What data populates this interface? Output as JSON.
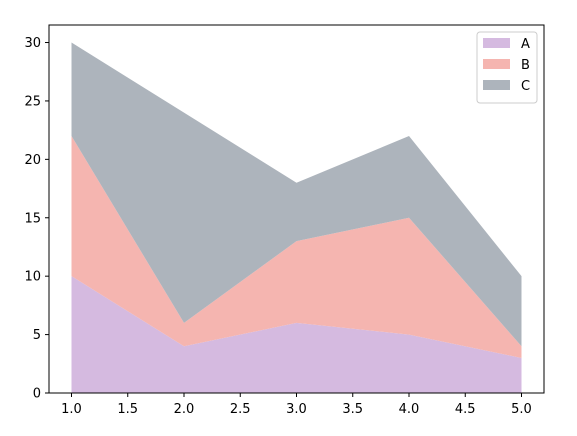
{
  "chart_data": {
    "type": "area",
    "stacked": true,
    "title": "",
    "xlabel": "",
    "ylabel": "",
    "x": [
      1,
      2,
      3,
      4,
      5
    ],
    "xlim": [
      0.8,
      5.2
    ],
    "ylim": [
      0,
      31.5
    ],
    "xticks": [
      "1.0",
      "1.5",
      "2.0",
      "2.5",
      "3.0",
      "3.5",
      "4.0",
      "4.5",
      "5.0"
    ],
    "yticks": [
      "0",
      "5",
      "10",
      "15",
      "20",
      "25",
      "30"
    ],
    "grid": false,
    "legend_position": "top-right",
    "series": [
      {
        "name": "A",
        "values": [
          10,
          4,
          6,
          5,
          3
        ],
        "color": "#d5bae0"
      },
      {
        "name": "B",
        "values": [
          12,
          2,
          7,
          10,
          1
        ],
        "color": "#f5b5b0"
      },
      {
        "name": "C",
        "values": [
          8,
          18,
          5,
          7,
          6
        ],
        "color": "#adb4bc"
      }
    ]
  }
}
